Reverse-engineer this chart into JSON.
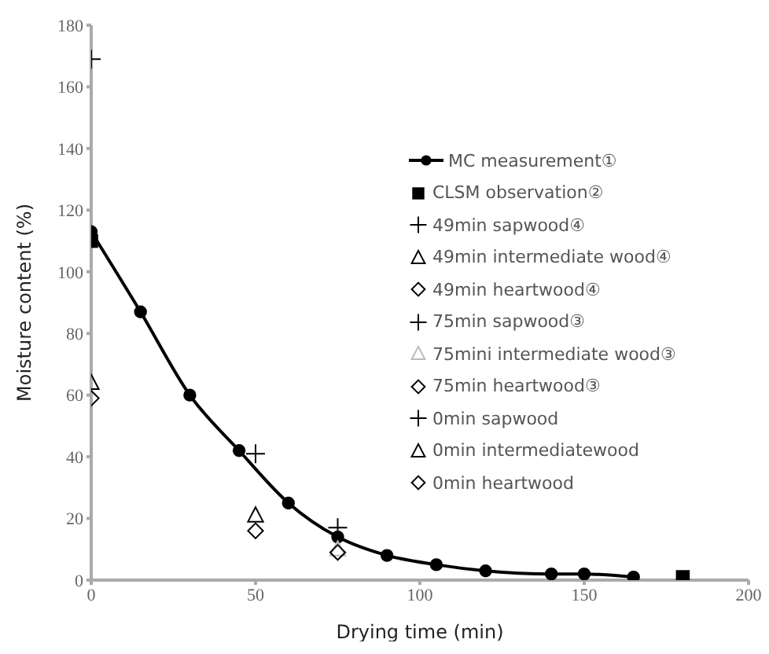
{
  "chart_data": {
    "type": "scatter",
    "xlabel": "Drying time (min)",
    "ylabel": "Moisture content (%)",
    "xlim": [
      0,
      200
    ],
    "xticks": [
      0,
      50,
      100,
      150,
      200
    ],
    "ylim": [
      0,
      180
    ],
    "yticks": [
      0,
      20,
      40,
      60,
      80,
      100,
      120,
      140,
      160,
      180
    ],
    "grid": false,
    "legend": "right",
    "series": [
      {
        "name": "MC measurement①",
        "type": "line",
        "marker": "circle",
        "line_style": "solid",
        "color": "#000000",
        "x": [
          0,
          15,
          30,
          45,
          60,
          75,
          90,
          105,
          120,
          140,
          150,
          165
        ],
        "values": [
          113,
          87,
          60,
          42,
          25,
          14,
          8,
          5,
          3,
          2,
          2,
          1
        ]
      },
      {
        "name": "CLSM observation②",
        "marker": "square",
        "color": "#000000",
        "x": [
          0,
          180
        ],
        "values": [
          110,
          1
        ]
      },
      {
        "name": "49min sapwood④",
        "marker": "cross",
        "color": "#000000",
        "x": [
          50
        ],
        "values": [
          41
        ]
      },
      {
        "name": "49min intermediate wood④",
        "marker": "triangle",
        "color": "#000000",
        "x": [
          50
        ],
        "values": [
          21
        ]
      },
      {
        "name": "49min heartwood④",
        "marker": "diamond",
        "color": "#000000",
        "x": [
          50
        ],
        "values": [
          16
        ]
      },
      {
        "name": "75min sapwood③",
        "marker": "cross",
        "color": "#000000",
        "x": [
          75
        ],
        "values": [
          17
        ]
      },
      {
        "name": "75mini intermediate wood③",
        "marker": "triangle",
        "color": "#bbbbbb",
        "x": [
          75
        ],
        "values": [
          10
        ]
      },
      {
        "name": "75min heartwood③",
        "marker": "diamond",
        "color": "#000000",
        "x": [
          75
        ],
        "values": [
          9
        ]
      },
      {
        "name": "0min sapwood",
        "marker": "cross",
        "color": "#000000",
        "x": [
          0
        ],
        "values": [
          169
        ]
      },
      {
        "name": "0min intermediatewood",
        "marker": "triangle",
        "color": "#000000",
        "x": [
          0
        ],
        "values": [
          64
        ]
      },
      {
        "name": "0min heartwood",
        "marker": "diamond",
        "color": "#000000",
        "x": [
          0
        ],
        "values": [
          59
        ]
      }
    ]
  }
}
